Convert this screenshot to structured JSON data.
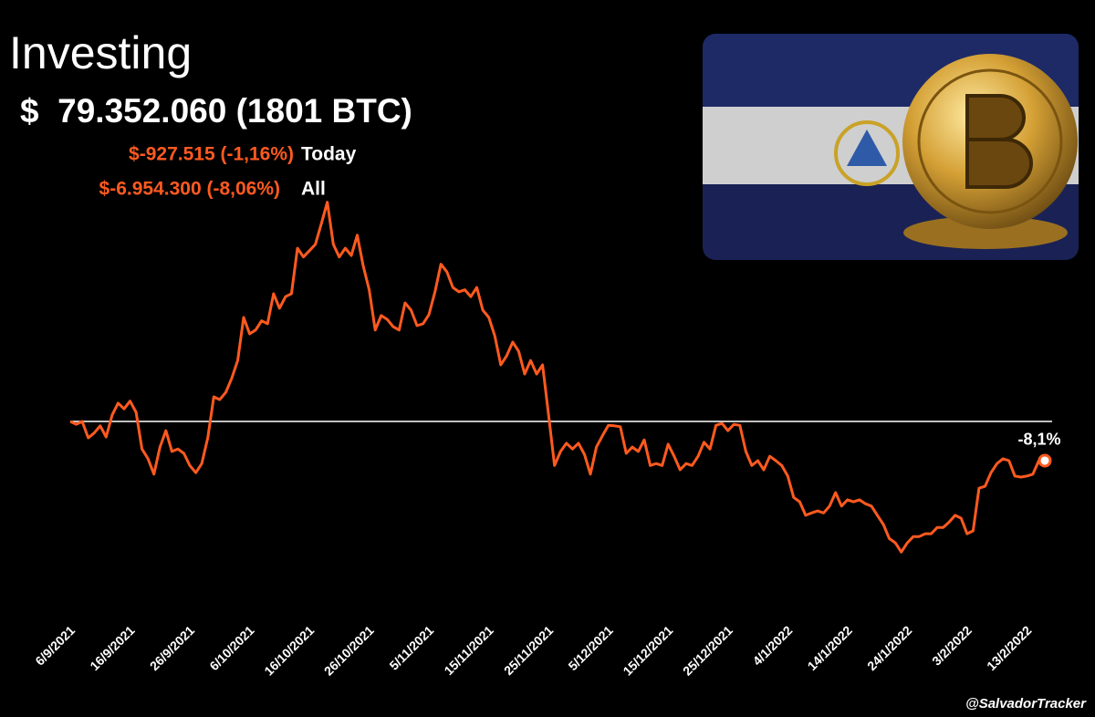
{
  "header": {
    "title": "Investing",
    "value": "$  79.352.060 (1801 BTC)",
    "today_change": "$-927.515 (-1,16%)",
    "today_label": "Today",
    "all_change": "$-6.954.300 (-8,06%)",
    "all_label": "All"
  },
  "footer": {
    "credit": "@SalvadorTracker"
  },
  "chart_data": {
    "type": "line",
    "categories": [
      "6/9/2021",
      "7/9/2021",
      "8/9/2021",
      "9/9/2021",
      "10/9/2021",
      "11/9/2021",
      "12/9/2021",
      "13/9/2021",
      "14/9/2021",
      "15/9/2021",
      "16/9/2021",
      "17/9/2021",
      "18/9/2021",
      "19/9/2021",
      "20/9/2021",
      "21/9/2021",
      "22/9/2021",
      "23/9/2021",
      "24/9/2021",
      "25/9/2021",
      "26/9/2021",
      "27/9/2021",
      "28/9/2021",
      "29/9/2021",
      "30/9/2021",
      "1/10/2021",
      "2/10/2021",
      "3/10/2021",
      "4/10/2021",
      "5/10/2021",
      "6/10/2021",
      "7/10/2021",
      "8/10/2021",
      "9/10/2021",
      "10/10/2021",
      "11/10/2021",
      "12/10/2021",
      "13/10/2021",
      "14/10/2021",
      "15/10/2021",
      "16/10/2021",
      "17/10/2021",
      "18/10/2021",
      "19/10/2021",
      "20/10/2021",
      "21/10/2021",
      "22/10/2021",
      "23/10/2021",
      "24/10/2021",
      "25/10/2021",
      "26/10/2021",
      "27/10/2021",
      "28/10/2021",
      "29/10/2021",
      "30/10/2021",
      "31/10/2021",
      "1/11/2021",
      "2/11/2021",
      "3/11/2021",
      "4/11/2021",
      "5/11/2021",
      "6/11/2021",
      "7/11/2021",
      "8/11/2021",
      "9/11/2021",
      "10/11/2021",
      "11/11/2021",
      "12/11/2021",
      "13/11/2021",
      "14/11/2021",
      "15/11/2021",
      "16/11/2021",
      "17/11/2021",
      "18/11/2021",
      "19/11/2021",
      "20/11/2021",
      "21/11/2021",
      "22/11/2021",
      "23/11/2021",
      "24/11/2021",
      "25/11/2021",
      "26/11/2021",
      "27/11/2021",
      "28/11/2021",
      "29/11/2021",
      "30/11/2021",
      "1/12/2021",
      "2/12/2021",
      "3/12/2021",
      "4/12/2021",
      "5/12/2021",
      "6/12/2021",
      "7/12/2021",
      "8/12/2021",
      "9/12/2021",
      "10/12/2021",
      "11/12/2021",
      "12/12/2021",
      "13/12/2021",
      "14/12/2021",
      "15/12/2021",
      "16/12/2021",
      "17/12/2021",
      "18/12/2021",
      "19/12/2021",
      "20/12/2021",
      "21/12/2021",
      "22/12/2021",
      "23/12/2021",
      "24/12/2021",
      "25/12/2021",
      "26/12/2021",
      "27/12/2021",
      "28/12/2021",
      "29/12/2021",
      "30/12/2021",
      "31/12/2021",
      "1/1/2022",
      "2/1/2022",
      "3/1/2022",
      "4/1/2022",
      "5/1/2022",
      "6/1/2022",
      "7/1/2022",
      "8/1/2022",
      "9/1/2022",
      "10/1/2022",
      "11/1/2022",
      "12/1/2022",
      "13/1/2022",
      "14/1/2022",
      "15/1/2022",
      "16/1/2022",
      "17/1/2022",
      "18/1/2022",
      "19/1/2022",
      "20/1/2022",
      "21/1/2022",
      "22/1/2022",
      "23/1/2022",
      "24/1/2022",
      "25/1/2022",
      "26/1/2022",
      "27/1/2022",
      "28/1/2022",
      "29/1/2022",
      "30/1/2022",
      "31/1/2022",
      "1/2/2022",
      "2/2/2022",
      "3/2/2022",
      "4/2/2022",
      "5/2/2022",
      "6/2/2022",
      "7/2/2022",
      "8/2/2022",
      "9/2/2022",
      "10/2/2022",
      "11/2/2022",
      "12/2/2022",
      "13/2/2022",
      "14/2/2022",
      "15/2/2022",
      "16/2/2022"
    ],
    "series": [
      {
        "color": "#ff5a1f",
        "values": [
          0,
          -0.6,
          0,
          -3.4,
          -2.4,
          -0.9,
          -3.2,
          1.3,
          3.8,
          2.6,
          4.2,
          1.9,
          -5.7,
          -7.7,
          -10.9,
          -5.3,
          -1.9,
          -6.2,
          -5.7,
          -6.6,
          -9.1,
          -10.6,
          -8.7,
          -3.4,
          5.1,
          4.5,
          6.0,
          8.9,
          12.6,
          21.5,
          18.1,
          18.9,
          20.8,
          20.2,
          26.4,
          23.4,
          25.8,
          26.4,
          35.8,
          34.0,
          35.3,
          36.6,
          40.9,
          45.3,
          36.6,
          34.0,
          35.8,
          34.3,
          38.5,
          32.1,
          27.2,
          18.9,
          21.9,
          21.1,
          19.6,
          18.9,
          24.5,
          23.0,
          19.8,
          20.2,
          22.1,
          26.8,
          32.5,
          30.9,
          27.7,
          26.8,
          27.2,
          25.8,
          27.7,
          23.0,
          21.5,
          17.7,
          11.7,
          13.6,
          16.4,
          14.5,
          9.8,
          12.6,
          9.8,
          11.7,
          1.3,
          -9.1,
          -6.2,
          -4.5,
          -5.7,
          -4.5,
          -6.8,
          -10.9,
          -5.3,
          -3.0,
          -0.8,
          -0.9,
          -1.1,
          -6.6,
          -5.3,
          -6.2,
          -3.8,
          -9.1,
          -8.7,
          -9.1,
          -4.7,
          -7.2,
          -10.0,
          -8.7,
          -9.1,
          -7.2,
          -4.3,
          -5.7,
          -0.8,
          -0.4,
          -1.9,
          -0.6,
          -0.8,
          -6.2,
          -9.1,
          -8.1,
          -10.0,
          -7.2,
          -8.1,
          -9.1,
          -11.3,
          -15.7,
          -16.6,
          -19.4,
          -18.9,
          -18.5,
          -18.9,
          -17.5,
          -14.7,
          -17.5,
          -16.2,
          -16.6,
          -16.2,
          -17.0,
          -17.5,
          -19.4,
          -21.3,
          -24.2,
          -25.1,
          -27.0,
          -25.1,
          -23.8,
          -23.8,
          -23.2,
          -23.2,
          -21.9,
          -21.9,
          -20.8,
          -19.4,
          -20.0,
          -23.2,
          -22.6,
          -13.8,
          -13.4,
          -10.6,
          -8.7,
          -7.7,
          -8.1,
          -11.3,
          -11.5,
          -11.3,
          -10.9,
          -8.1,
          -8.1
        ]
      }
    ],
    "ylim": [
      -41.1,
      49.4
    ],
    "xticks": [
      "6/9/2021",
      "16/9/2021",
      "26/9/2021",
      "6/10/2021",
      "16/10/2021",
      "26/10/2021",
      "5/11/2021",
      "15/11/2021",
      "25/11/2021",
      "5/12/2021",
      "15/12/2021",
      "25/12/2021",
      "4/1/2022",
      "14/1/2022",
      "24/1/2022",
      "3/2/2022",
      "13/2/2022"
    ],
    "annotations": [
      {
        "text": "-8,1%",
        "x": "16/2/2022"
      }
    ],
    "zero_line": true
  }
}
